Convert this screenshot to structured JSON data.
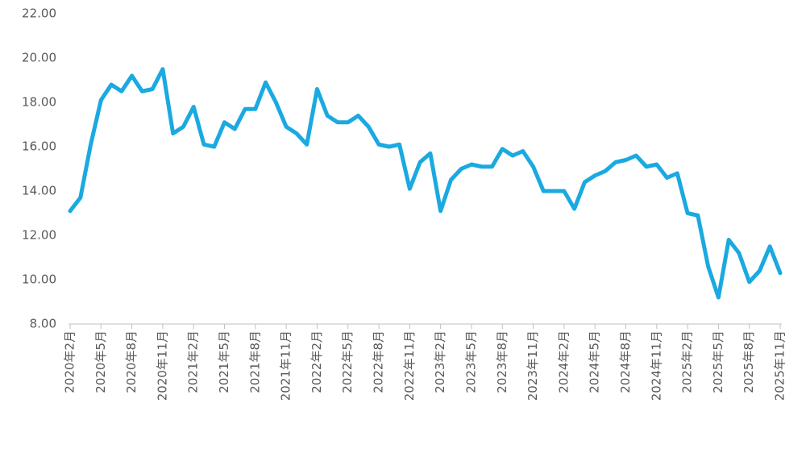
{
  "chart_data": {
    "type": "line",
    "categories": [
      "2020年2月",
      null,
      null,
      "2020年5月",
      null,
      null,
      "2020年8月",
      null,
      null,
      "2020年11月",
      null,
      null,
      "2021年2月",
      null,
      null,
      "2021年5月",
      null,
      null,
      "2021年8月",
      null,
      null,
      "2021年11月",
      null,
      null,
      "2022年2月",
      null,
      null,
      "2022年5月",
      null,
      null,
      "2022年8月",
      null,
      null,
      "2022年11月",
      null,
      null,
      "2023年2月",
      null,
      null,
      "2023年5月",
      null,
      null,
      "2023年8月",
      null,
      null,
      "2023年11月",
      null,
      null,
      "2024年2月",
      null,
      null,
      "2024年5月",
      null,
      null,
      "2024年8月",
      null,
      null,
      "2024年11月",
      null,
      null,
      "2025年2月",
      null,
      null,
      "2025年5月",
      null,
      null,
      "2025年8月",
      null,
      null,
      "2025年11月"
    ],
    "values": [
      13.1,
      13.7,
      16.1,
      18.1,
      18.8,
      18.5,
      19.2,
      18.5,
      18.6,
      19.5,
      16.6,
      16.9,
      17.8,
      16.1,
      16.0,
      17.1,
      16.8,
      17.7,
      17.7,
      18.9,
      18.0,
      16.9,
      16.6,
      16.1,
      18.6,
      17.4,
      17.1,
      17.1,
      17.4,
      16.9,
      16.1,
      16.0,
      16.1,
      14.1,
      15.3,
      15.7,
      13.1,
      14.5,
      15.0,
      15.2,
      15.1,
      15.1,
      15.9,
      15.6,
      15.8,
      15.1,
      14.0,
      14.0,
      14.0,
      13.2,
      14.4,
      14.7,
      14.9,
      15.3,
      15.4,
      15.6,
      15.1,
      15.2,
      14.6,
      14.8,
      13.0,
      12.9,
      10.6,
      9.2,
      11.8,
      11.2,
      9.9,
      10.4,
      11.5,
      10.3
    ],
    "color": "#1aa9e0",
    "ylim": [
      8,
      22
    ],
    "yticks": [
      {
        "value": 8,
        "label": "8.00"
      },
      {
        "value": 10,
        "label": "10.00"
      },
      {
        "value": 12,
        "label": "12.00"
      },
      {
        "value": 14,
        "label": "14.00"
      },
      {
        "value": 16,
        "label": "16.00"
      },
      {
        "value": 18,
        "label": "18.00"
      },
      {
        "value": 20,
        "label": "20.00"
      },
      {
        "value": 22,
        "label": "22.00"
      }
    ],
    "grid": false
  }
}
